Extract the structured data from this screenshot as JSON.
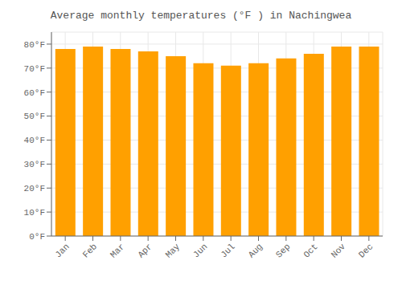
{
  "chart_data": {
    "type": "bar",
    "title": "Average monthly temperatures (°F ) in Nachingwea",
    "categories": [
      "Jan",
      "Feb",
      "Mar",
      "Apr",
      "May",
      "Jun",
      "Jul",
      "Aug",
      "Sep",
      "Oct",
      "Nov",
      "Dec"
    ],
    "values": [
      78,
      79,
      78,
      77,
      75,
      72,
      71,
      72,
      74,
      76,
      79,
      79
    ],
    "color": "#FFA000",
    "ylim": [
      0,
      85
    ],
    "yticks": [
      {
        "value": 0,
        "label": "0°F"
      },
      {
        "value": 10,
        "label": "10°F"
      },
      {
        "value": 20,
        "label": "20°F"
      },
      {
        "value": 30,
        "label": "30°F"
      },
      {
        "value": 40,
        "label": "40°F"
      },
      {
        "value": 50,
        "label": "50°F"
      },
      {
        "value": 60,
        "label": "60°F"
      },
      {
        "value": 70,
        "label": "70°F"
      },
      {
        "value": 80,
        "label": "80°F"
      }
    ],
    "grid": true
  }
}
